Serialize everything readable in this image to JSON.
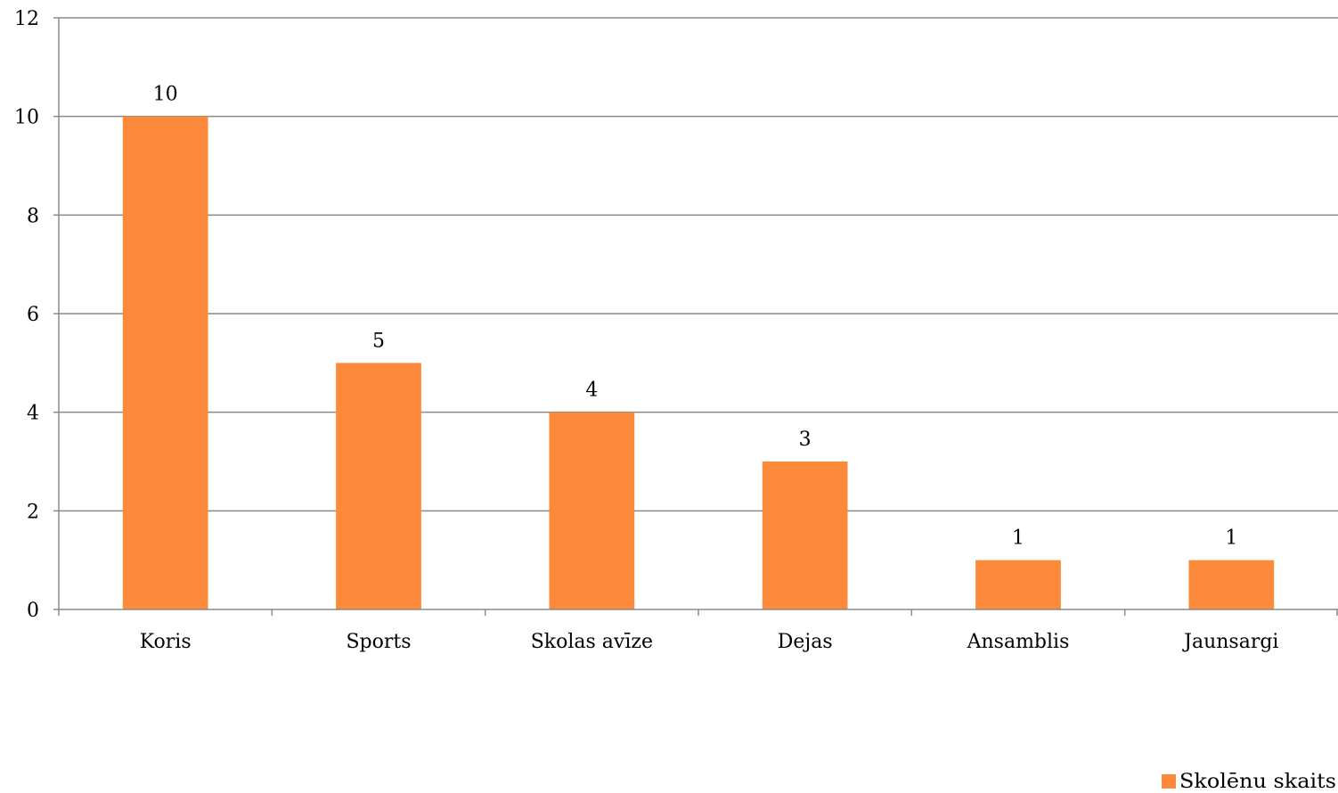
{
  "chart_data": {
    "type": "bar",
    "categories": [
      "Koris",
      "Sports",
      "Skolas avīze",
      "Dejas",
      "Ansamblis",
      "Jaunsargi"
    ],
    "series": [
      {
        "name": "Skolēnu skaits",
        "values": [
          10,
          5,
          4,
          3,
          1,
          1
        ],
        "color": "#fd8a3a"
      }
    ],
    "data_labels": [
      "10",
      "5",
      "4",
      "3",
      "1",
      "1"
    ],
    "yticks": [
      0,
      2,
      4,
      6,
      8,
      10,
      12
    ],
    "ytick_labels": [
      "0",
      "2",
      "4",
      "6",
      "8",
      "10",
      "12"
    ],
    "ylim": [
      0,
      12
    ],
    "title": "",
    "xlabel": "",
    "ylabel": "",
    "grid": true,
    "gridline_color": "#8a8a8a",
    "legend_position": "bottom-right"
  }
}
